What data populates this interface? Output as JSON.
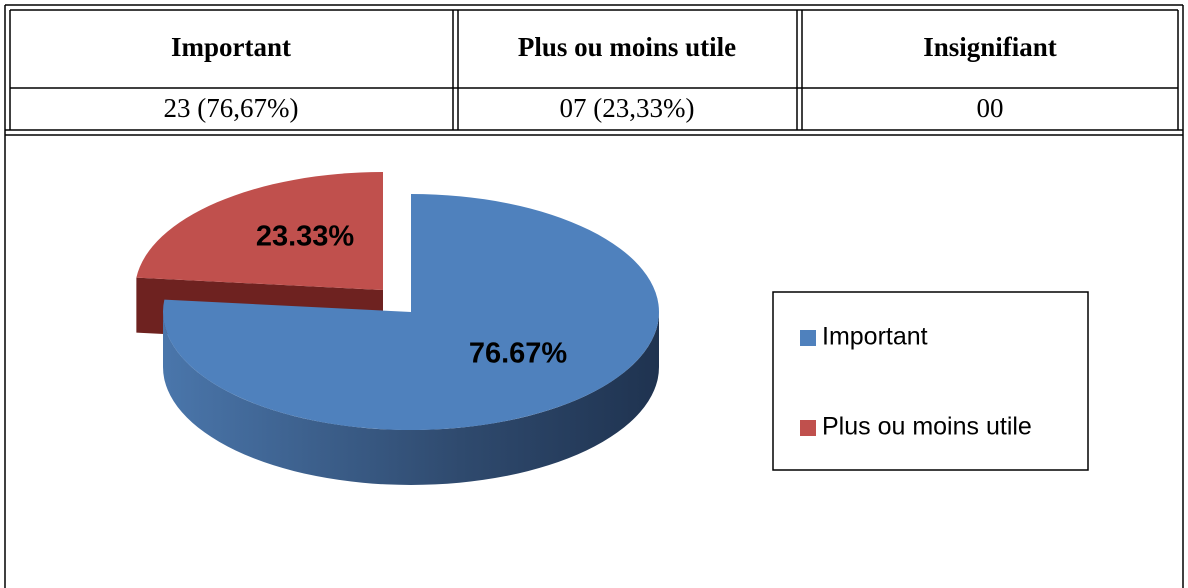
{
  "table": {
    "header": [
      "Important",
      "Plus ou moins utile",
      "Insignifiant"
    ],
    "rows": [
      [
        "23 (76,67%)",
        "07 (23,33%)",
        "00"
      ]
    ]
  },
  "chart_data": {
    "type": "pie",
    "categories": [
      "Important",
      "Plus ou moins utile"
    ],
    "values": [
      76.67,
      23.33
    ],
    "value_labels": [
      "76.67%",
      "23.33%"
    ],
    "colors": [
      "#4f81bd",
      "#c0504d"
    ],
    "legend": "right"
  }
}
